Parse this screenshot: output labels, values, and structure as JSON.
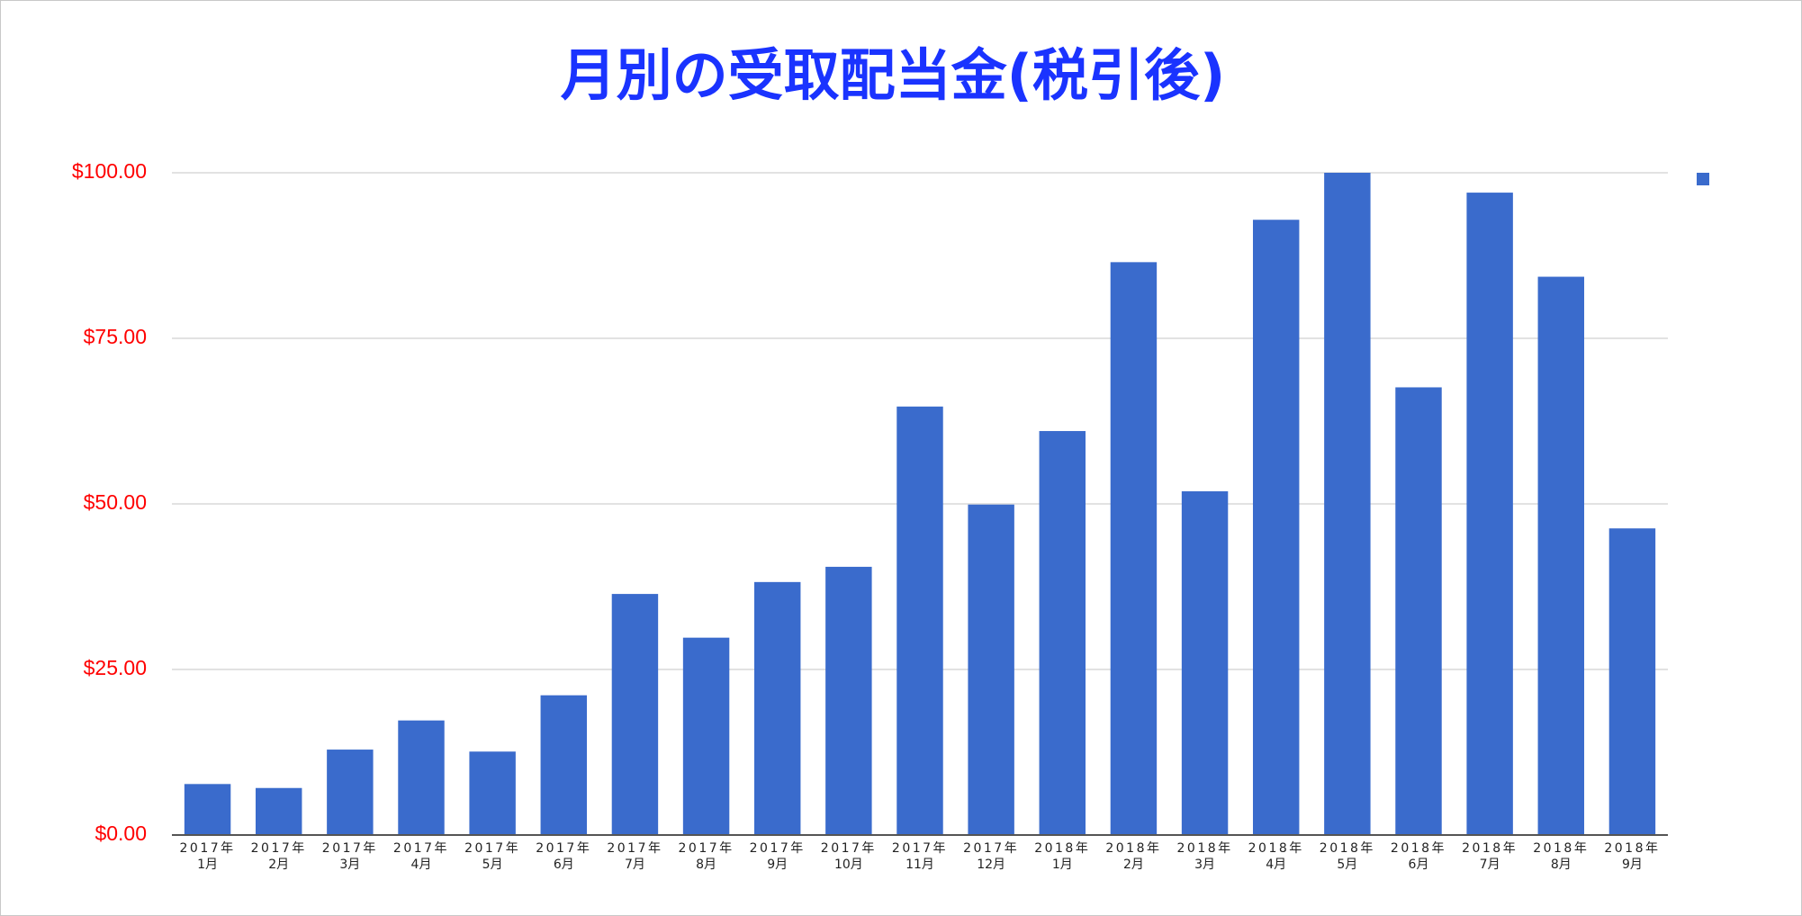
{
  "colors": {
    "title": "#1a33ff",
    "y_tick": "#ff0000",
    "bar": "#3a6bcc",
    "legend_swatch": "#3a6bcc"
  },
  "chart_data": {
    "type": "bar",
    "title": "月別の受取配当金(税引後)",
    "xlabel": "",
    "ylabel": "",
    "ylim": [
      0,
      100
    ],
    "y_ticks": [
      "$0.00",
      "$25.00",
      "$50.00",
      "$75.00",
      "$100.00"
    ],
    "y_tick_values": [
      0,
      25,
      50,
      75,
      100
    ],
    "grid": true,
    "legend": "right",
    "categories": [
      [
        "2017年",
        "1月"
      ],
      [
        "2017年",
        "2月"
      ],
      [
        "2017年",
        "3月"
      ],
      [
        "2017年",
        "4月"
      ],
      [
        "2017年",
        "5月"
      ],
      [
        "2017年",
        "6月"
      ],
      [
        "2017年",
        "7月"
      ],
      [
        "2017年",
        "8月"
      ],
      [
        "2017年",
        "9月"
      ],
      [
        "2017年",
        "10月"
      ],
      [
        "2017年",
        "11月"
      ],
      [
        "2017年",
        "12月"
      ],
      [
        "2018年",
        "1月"
      ],
      [
        "2018年",
        "2月"
      ],
      [
        "2018年",
        "3月"
      ],
      [
        "2018年",
        "4月"
      ],
      [
        "2018年",
        "5月"
      ],
      [
        "2018年",
        "6月"
      ],
      [
        "2018年",
        "7月"
      ],
      [
        "2018年",
        "8月"
      ],
      [
        "2018年",
        "9月"
      ]
    ],
    "series": [
      {
        "values": [
          7.7,
          7.1,
          12.9,
          17.3,
          12.6,
          21.1,
          36.4,
          29.8,
          38.2,
          40.5,
          64.7,
          49.9,
          61.0,
          86.5,
          51.9,
          92.9,
          100.0,
          67.6,
          97.0,
          84.3,
          46.3
        ]
      }
    ]
  }
}
